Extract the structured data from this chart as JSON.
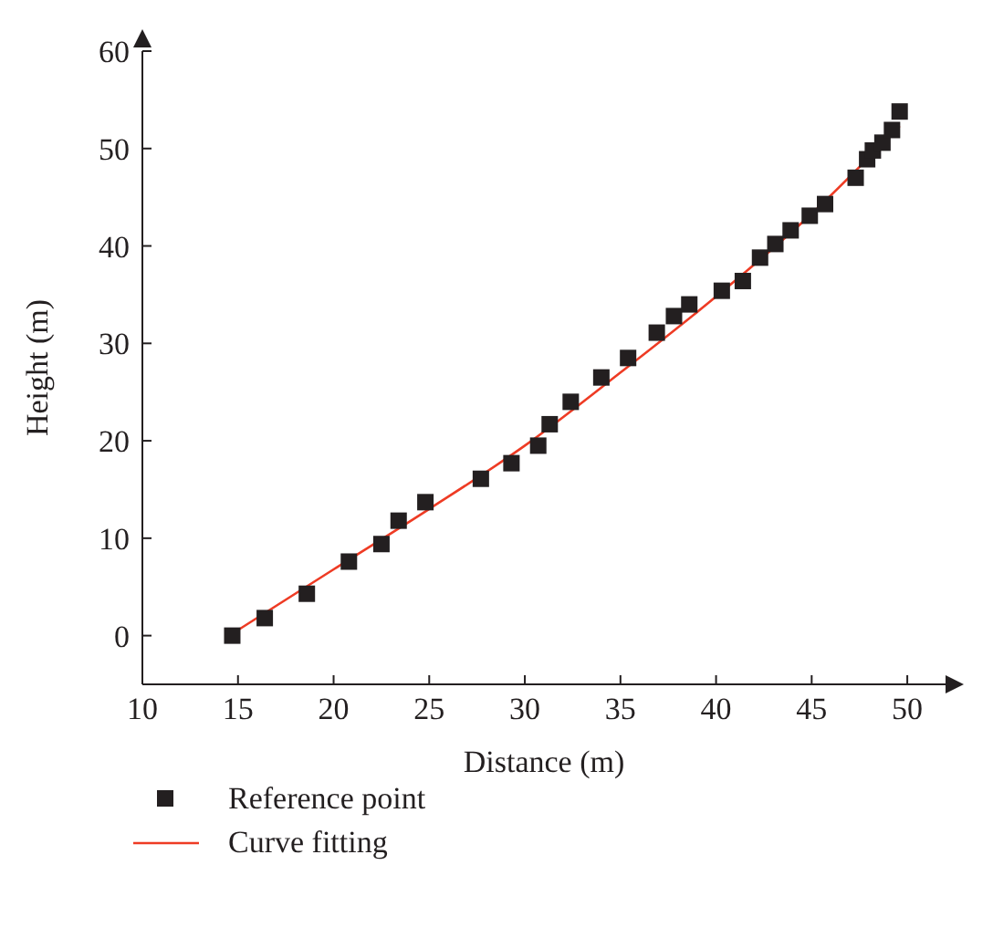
{
  "chart_data": {
    "type": "scatter",
    "xlabel": "Distance (m)",
    "ylabel": "Height (m)",
    "xlim": [
      10,
      52
    ],
    "xticks": [
      10,
      15,
      20,
      25,
      30,
      35,
      40,
      45,
      50
    ],
    "ylim": [
      -5,
      60
    ],
    "yticks": [
      0,
      10,
      20,
      30,
      40,
      50,
      60
    ],
    "grid": false,
    "legend": "bottom left",
    "series": [
      {
        "name": "Reference point",
        "marker": "square",
        "color": "#231f20",
        "x": [
          14.7,
          16.4,
          18.6,
          20.8,
          22.5,
          23.4,
          24.8,
          27.7,
          29.3,
          30.7,
          31.3,
          32.4,
          34.0,
          35.4,
          36.9,
          37.8,
          38.6,
          40.3,
          41.4,
          42.3,
          43.1,
          43.9,
          44.9,
          45.7,
          47.3,
          47.9,
          48.2,
          48.7,
          49.2,
          49.6
        ],
        "values": [
          0,
          1.8,
          4.3,
          7.6,
          9.4,
          11.8,
          13.7,
          16.1,
          17.7,
          19.5,
          21.7,
          24.0,
          26.5,
          28.5,
          31.1,
          32.8,
          34.0,
          35.4,
          36.4,
          38.8,
          40.2,
          41.6,
          43.1,
          44.3,
          47.0,
          48.9,
          49.8,
          50.6,
          51.9,
          53.8
        ]
      },
      {
        "name": "Curve fitting",
        "type": "line",
        "marker": "none",
        "line_style": "solid",
        "color": "#ee3b24",
        "x": [
          14.7,
          20,
          25,
          30,
          35,
          40,
          45,
          49.6
        ],
        "values": [
          0.2,
          6.8,
          13.0,
          19.5,
          27.0,
          34.8,
          43.3,
          52.3
        ]
      }
    ]
  }
}
